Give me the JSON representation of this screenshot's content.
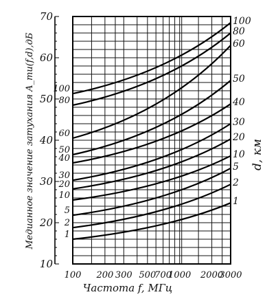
{
  "chart_data": {
    "type": "line",
    "ylabel": "Медианное значение затухания A_mu(f,d),дБ",
    "xlabel": "Частота f, МГц",
    "right_axis_label": "d, км",
    "x_scale": "log",
    "xlim": [
      100,
      3000
    ],
    "ylim": [
      10,
      70
    ],
    "grid": true,
    "x_ticks": [
      {
        "value": 100,
        "label": "100"
      },
      {
        "value": 200,
        "label": "200"
      },
      {
        "value": 300,
        "label": "300"
      },
      {
        "value": 500,
        "label": "500"
      },
      {
        "value": 700,
        "label": "700"
      },
      {
        "value": 1000,
        "label": "1000"
      },
      {
        "value": 2000,
        "label": "2000"
      },
      {
        "value": 3000,
        "label": "3000"
      }
    ],
    "y_ticks": [
      {
        "value": 10,
        "label": "10"
      },
      {
        "value": 20,
        "label": "20"
      },
      {
        "value": 30,
        "label": "30"
      },
      {
        "value": 40,
        "label": "40"
      },
      {
        "value": 50,
        "label": "50"
      },
      {
        "value": 60,
        "label": "60"
      },
      {
        "value": 70,
        "label": "70"
      }
    ],
    "series": [
      {
        "name": "1",
        "left_label": "1",
        "right_label": "1",
        "x": [
          100,
          3000
        ],
        "y": [
          16.0,
          24.8
        ]
      },
      {
        "name": "2",
        "left_label": "2",
        "right_label": "2",
        "x": [
          100,
          3000
        ],
        "y": [
          18.8,
          29.3
        ]
      },
      {
        "name": "5",
        "left_label": "5",
        "right_label": "5",
        "x": [
          100,
          3000
        ],
        "y": [
          21.8,
          33.2
        ]
      },
      {
        "name": "10",
        "left_label": "10",
        "right_label": "10",
        "x": [
          100,
          3000
        ],
        "y": [
          25.5,
          36.2
        ]
      },
      {
        "name": "20",
        "left_label": "20",
        "right_label": "20",
        "x": [
          100,
          3000
        ],
        "y": [
          28.2,
          40.3
        ]
      },
      {
        "name": "30",
        "left_label": "30",
        "right_label": "30",
        "x": [
          100,
          3000
        ],
        "y": [
          30.3,
          44.0
        ]
      },
      {
        "name": "40",
        "left_label": "40",
        "right_label": "40",
        "x": [
          100,
          3000
        ],
        "y": [
          34.5,
          48.8
        ]
      },
      {
        "name": "50",
        "left_label": "50",
        "right_label": "50",
        "x": [
          100,
          3000
        ],
        "y": [
          36.5,
          54.5
        ]
      },
      {
        "name": "60",
        "left_label": "60",
        "right_label": "60",
        "x": [
          100,
          3000
        ],
        "y": [
          40.5,
          63.0
        ]
      },
      {
        "name": "80",
        "left_label": "80",
        "right_label": "80",
        "x": [
          100,
          3000
        ],
        "y": [
          48.5,
          66.0
        ]
      },
      {
        "name": "100",
        "left_label": "100",
        "right_label": "100",
        "x": [
          100,
          3000
        ],
        "y": [
          51.3,
          68.5
        ]
      }
    ]
  }
}
